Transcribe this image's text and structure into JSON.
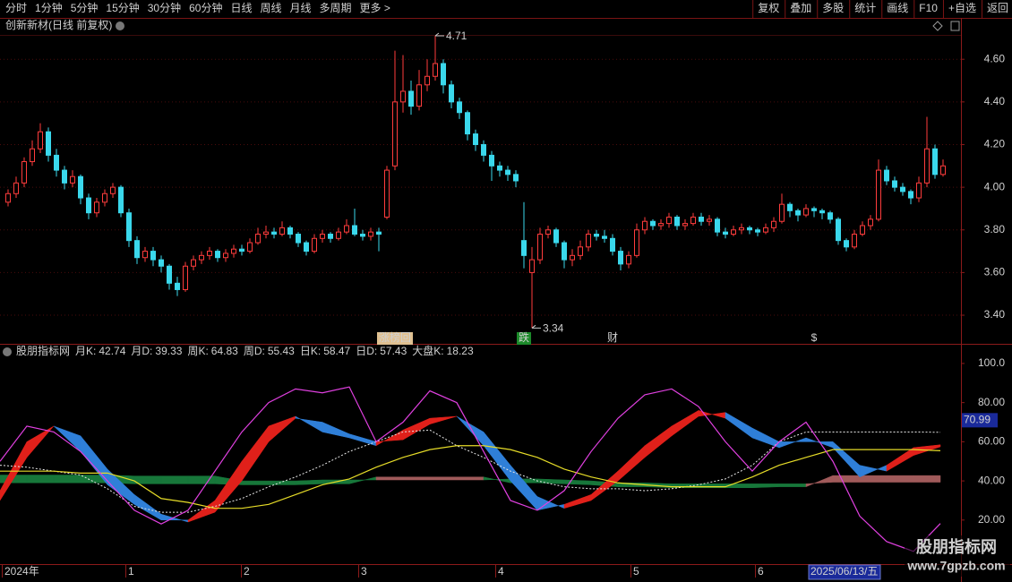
{
  "toolbar": {
    "left": [
      "分时",
      "1分钟",
      "5分钟",
      "15分钟",
      "30分钟",
      "60分钟",
      "日线",
      "周线",
      "月线",
      "多周期",
      "更多 >"
    ],
    "active": 6,
    "right": [
      "复权",
      "叠加",
      "多股",
      "统计",
      "画线",
      "F10",
      "+自选",
      "返回"
    ]
  },
  "chart_data": [
    {
      "type": "candlestick",
      "title": "创新新材(日线 前复权)",
      "up_color": "#ff3c3c",
      "down_color": "#3ad8ec",
      "grid": true,
      "ylim": [
        3.27,
        4.71
      ],
      "yticks": [
        {
          "value": 3.4,
          "label": "3.40"
        },
        {
          "value": 3.6,
          "label": "3.60"
        },
        {
          "value": 3.8,
          "label": "3.80"
        },
        {
          "value": 4.0,
          "label": "4.00"
        },
        {
          "value": 4.2,
          "label": "4.20"
        },
        {
          "value": 4.4,
          "label": "4.40"
        },
        {
          "value": 4.6,
          "label": "4.60"
        }
      ],
      "events": [
        "涨榜回",
        "跌",
        "财",
        "$"
      ],
      "candles": [
        [
          3.93,
          3.99,
          3.91,
          3.97
        ],
        [
          3.97,
          4.05,
          3.95,
          4.02
        ],
        [
          4.02,
          4.14,
          4.0,
          4.12
        ],
        [
          4.12,
          4.22,
          4.1,
          4.18
        ],
        [
          4.18,
          4.3,
          4.16,
          4.26
        ],
        [
          4.26,
          4.28,
          4.12,
          4.15
        ],
        [
          4.15,
          4.18,
          4.05,
          4.08
        ],
        [
          4.08,
          4.1,
          3.99,
          4.02
        ],
        [
          4.02,
          4.08,
          4.0,
          4.05
        ],
        [
          4.05,
          4.06,
          3.92,
          3.95
        ],
        [
          3.95,
          3.97,
          3.85,
          3.88
        ],
        [
          3.88,
          3.95,
          3.86,
          3.93
        ],
        [
          3.93,
          3.99,
          3.91,
          3.97
        ],
        [
          3.97,
          4.02,
          3.95,
          4.0
        ],
        [
          4.0,
          4.01,
          3.86,
          3.88
        ],
        [
          3.88,
          3.9,
          3.72,
          3.75
        ],
        [
          3.75,
          3.77,
          3.64,
          3.67
        ],
        [
          3.67,
          3.72,
          3.65,
          3.7
        ],
        [
          3.7,
          3.72,
          3.63,
          3.66
        ],
        [
          3.66,
          3.68,
          3.6,
          3.63
        ],
        [
          3.63,
          3.64,
          3.52,
          3.55
        ],
        [
          3.55,
          3.58,
          3.49,
          3.52
        ],
        [
          3.52,
          3.65,
          3.51,
          3.63
        ],
        [
          3.63,
          3.68,
          3.61,
          3.66
        ],
        [
          3.66,
          3.7,
          3.64,
          3.68
        ],
        [
          3.68,
          3.72,
          3.66,
          3.7
        ],
        [
          3.7,
          3.71,
          3.65,
          3.67
        ],
        [
          3.67,
          3.71,
          3.65,
          3.69
        ],
        [
          3.69,
          3.73,
          3.67,
          3.71
        ],
        [
          3.71,
          3.73,
          3.68,
          3.7
        ],
        [
          3.7,
          3.76,
          3.69,
          3.74
        ],
        [
          3.74,
          3.81,
          3.73,
          3.78
        ],
        [
          3.78,
          3.82,
          3.76,
          3.79
        ],
        [
          3.79,
          3.81,
          3.76,
          3.78
        ],
        [
          3.78,
          3.84,
          3.77,
          3.81
        ],
        [
          3.81,
          3.82,
          3.76,
          3.78
        ],
        [
          3.78,
          3.79,
          3.72,
          3.74
        ],
        [
          3.74,
          3.75,
          3.68,
          3.7
        ],
        [
          3.7,
          3.78,
          3.69,
          3.76
        ],
        [
          3.76,
          3.8,
          3.74,
          3.78
        ],
        [
          3.78,
          3.79,
          3.74,
          3.76
        ],
        [
          3.76,
          3.81,
          3.75,
          3.79
        ],
        [
          3.79,
          3.85,
          3.78,
          3.82
        ],
        [
          3.82,
          3.9,
          3.77,
          3.78
        ],
        [
          3.78,
          3.8,
          3.75,
          3.77
        ],
        [
          3.77,
          3.81,
          3.75,
          3.79
        ],
        [
          3.79,
          3.81,
          3.7,
          3.78
        ],
        [
          3.86,
          4.1,
          3.85,
          4.08
        ],
        [
          4.1,
          4.64,
          4.08,
          4.4
        ],
        [
          4.4,
          4.62,
          4.35,
          4.45
        ],
        [
          4.45,
          4.5,
          4.34,
          4.38
        ],
        [
          4.38,
          4.55,
          4.36,
          4.48
        ],
        [
          4.48,
          4.6,
          4.45,
          4.52
        ],
        [
          4.52,
          4.71,
          4.5,
          4.58
        ],
        [
          4.58,
          4.6,
          4.44,
          4.48
        ],
        [
          4.48,
          4.5,
          4.37,
          4.4
        ],
        [
          4.4,
          4.42,
          4.32,
          4.35
        ],
        [
          4.35,
          4.36,
          4.22,
          4.25
        ],
        [
          4.25,
          4.27,
          4.17,
          4.2
        ],
        [
          4.2,
          4.22,
          4.12,
          4.15
        ],
        [
          4.15,
          4.17,
          4.03,
          4.1
        ],
        [
          4.1,
          4.12,
          4.05,
          4.08
        ],
        [
          4.08,
          4.1,
          4.03,
          4.06
        ],
        [
          4.06,
          4.08,
          4.0,
          4.03
        ],
        [
          3.75,
          3.93,
          3.62,
          3.68
        ],
        [
          3.6,
          3.72,
          3.34,
          3.66
        ],
        [
          3.66,
          3.81,
          3.64,
          3.78
        ],
        [
          3.78,
          3.82,
          3.76,
          3.8
        ],
        [
          3.8,
          3.81,
          3.72,
          3.74
        ],
        [
          3.74,
          3.75,
          3.62,
          3.66
        ],
        [
          3.66,
          3.71,
          3.63,
          3.68
        ],
        [
          3.68,
          3.75,
          3.66,
          3.72
        ],
        [
          3.72,
          3.8,
          3.7,
          3.78
        ],
        [
          3.78,
          3.8,
          3.75,
          3.77
        ],
        [
          3.77,
          3.8,
          3.74,
          3.76
        ],
        [
          3.76,
          3.78,
          3.68,
          3.7
        ],
        [
          3.7,
          3.72,
          3.61,
          3.64
        ],
        [
          3.64,
          3.7,
          3.62,
          3.68
        ],
        [
          3.68,
          3.83,
          3.67,
          3.8
        ],
        [
          3.8,
          3.86,
          3.78,
          3.84
        ],
        [
          3.84,
          3.85,
          3.8,
          3.82
        ],
        [
          3.82,
          3.85,
          3.8,
          3.83
        ],
        [
          3.83,
          3.88,
          3.81,
          3.86
        ],
        [
          3.86,
          3.87,
          3.8,
          3.82
        ],
        [
          3.82,
          3.85,
          3.8,
          3.83
        ],
        [
          3.83,
          3.88,
          3.82,
          3.86
        ],
        [
          3.86,
          3.88,
          3.82,
          3.84
        ],
        [
          3.84,
          3.87,
          3.82,
          3.85
        ],
        [
          3.85,
          3.86,
          3.77,
          3.79
        ],
        [
          3.79,
          3.81,
          3.76,
          3.78
        ],
        [
          3.78,
          3.82,
          3.77,
          3.8
        ],
        [
          3.8,
          3.83,
          3.78,
          3.81
        ],
        [
          3.81,
          3.82,
          3.78,
          3.8
        ],
        [
          3.8,
          3.81,
          3.77,
          3.79
        ],
        [
          3.79,
          3.83,
          3.78,
          3.81
        ],
        [
          3.81,
          3.86,
          3.79,
          3.84
        ],
        [
          3.84,
          3.97,
          3.83,
          3.92
        ],
        [
          3.92,
          3.93,
          3.86,
          3.89
        ],
        [
          3.89,
          3.9,
          3.84,
          3.87
        ],
        [
          3.87,
          3.92,
          3.86,
          3.9
        ],
        [
          3.9,
          3.91,
          3.86,
          3.89
        ],
        [
          3.89,
          3.9,
          3.85,
          3.88
        ],
        [
          3.88,
          3.89,
          3.83,
          3.85
        ],
        [
          3.85,
          3.86,
          3.73,
          3.75
        ],
        [
          3.75,
          3.76,
          3.7,
          3.72
        ],
        [
          3.72,
          3.8,
          3.71,
          3.78
        ],
        [
          3.78,
          3.84,
          3.77,
          3.82
        ],
        [
          3.82,
          3.87,
          3.8,
          3.85
        ],
        [
          3.85,
          4.13,
          3.84,
          4.08
        ],
        [
          4.08,
          4.1,
          4.01,
          4.03
        ],
        [
          4.03,
          4.05,
          3.98,
          4.0
        ],
        [
          4.0,
          4.02,
          3.96,
          3.98
        ],
        [
          3.98,
          3.99,
          3.92,
          3.95
        ],
        [
          3.95,
          4.05,
          3.93,
          4.02
        ],
        [
          4.02,
          4.33,
          4.0,
          4.18
        ],
        [
          4.18,
          4.2,
          4.04,
          4.06
        ],
        [
          4.06,
          4.13,
          4.05,
          4.1
        ]
      ]
    },
    {
      "type": "line",
      "title": "股朋指标网",
      "ylim": [
        -2.5,
        105
      ],
      "cursor_value": 70.99,
      "yticks": [
        {
          "value": 20,
          "label": "20.00"
        },
        {
          "value": 40,
          "label": "40.00"
        },
        {
          "value": 60,
          "label": "60.00"
        },
        {
          "value": 80,
          "label": "80.00"
        },
        {
          "value": 100,
          "label": "100.0"
        }
      ],
      "series": [
        {
          "name": "月K:",
          "color": "#49d2d2",
          "fill": [
            "#a05a5a",
            "#17773a"
          ],
          "values": [
            39,
            39,
            39,
            39,
            39,
            38.5,
            38.5,
            38.5,
            38.5,
            38,
            38,
            38,
            38.5,
            38.5,
            42,
            42,
            42,
            42,
            42,
            39,
            39,
            38.5,
            38,
            37,
            37,
            36.5,
            36.5,
            36.5,
            36.5,
            37,
            37,
            42.74,
            42.74,
            42.74,
            42.74,
            42.74
          ]
        },
        {
          "name": "月D:",
          "color": "#49d2d2",
          "values": [
            43,
            43,
            43,
            43,
            43,
            42.5,
            42.5,
            42.5,
            42.5,
            40,
            40,
            40,
            40.5,
            40.5,
            40.5,
            40.5,
            40.5,
            40.5,
            40.5,
            41,
            41,
            40.5,
            40,
            39,
            39,
            38.5,
            38.5,
            38.5,
            38.5,
            38.5,
            38.5,
            39.33,
            39.33,
            39.33,
            39.33,
            39.33
          ]
        },
        {
          "name": "周K:",
          "color": "#e8e8e8",
          "dash": true,
          "values": [
            48,
            47,
            45,
            43,
            36,
            27,
            24,
            24,
            27,
            31,
            37,
            42,
            48,
            55,
            60,
            65,
            66,
            58,
            52,
            45,
            40,
            37,
            36,
            36,
            35,
            36,
            38,
            41,
            48,
            60,
            65,
            65,
            65,
            65,
            65,
            64.83
          ]
        },
        {
          "name": "周D:",
          "color": "#e6dc28",
          "values": [
            45,
            45,
            45,
            44,
            44,
            40,
            31,
            29,
            26,
            26,
            28,
            33,
            38,
            41,
            47,
            52,
            56,
            58,
            58,
            56,
            52,
            46,
            42,
            39,
            38,
            37,
            37,
            37,
            42,
            48,
            52,
            56,
            56,
            56,
            56,
            55.43
          ]
        },
        {
          "name": "日K:",
          "color": "#e8e8e8",
          "fill": [
            "#e0201a",
            "#2f7fd8"
          ],
          "values": [
            35,
            60,
            68,
            55,
            38,
            28,
            20,
            20,
            30,
            50,
            68,
            73,
            65,
            62,
            58,
            66,
            72,
            73,
            58,
            40,
            25,
            28,
            33,
            45,
            58,
            68,
            76,
            72,
            62,
            57,
            62,
            57,
            42,
            48,
            57,
            58.47
          ]
        },
        {
          "name": "日D:",
          "color": "#3a5cff",
          "values": [
            30,
            52,
            68,
            63,
            46,
            33,
            23,
            19,
            24,
            40,
            60,
            72,
            70,
            64,
            60,
            61,
            69,
            73,
            65,
            48,
            32,
            26,
            30,
            40,
            52,
            63,
            73,
            75,
            67,
            60,
            60,
            60,
            48,
            45,
            53,
            57.43
          ]
        },
        {
          "name": "大盘K:",
          "color": "#e040e0",
          "values": [
            50,
            68,
            65,
            55,
            40,
            25,
            18,
            25,
            45,
            65,
            80,
            87,
            85,
            88,
            60,
            70,
            86,
            80,
            55,
            30,
            25,
            35,
            55,
            72,
            84,
            87,
            78,
            60,
            45,
            60,
            70,
            50,
            22,
            9,
            4,
            18.23
          ]
        }
      ]
    }
  ],
  "x_axis": {
    "labels": [
      "2024年",
      "1",
      "2",
      "3",
      "4",
      "5",
      "6"
    ],
    "cursor_date": "2025/06/13/五"
  },
  "watermark": {
    "name": "股朋指标网",
    "url": "www.7gpzb.com"
  }
}
